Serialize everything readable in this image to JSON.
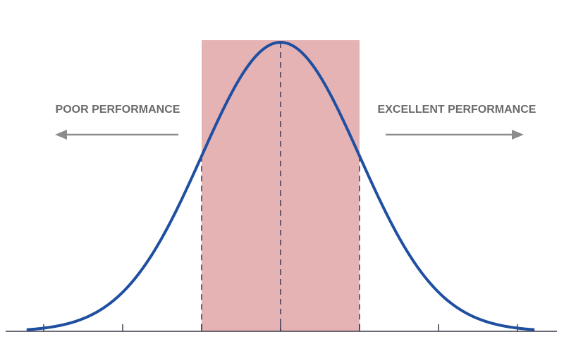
{
  "labels": {
    "left": "POOR PERFORMANCE",
    "right": "EXCELLENT PERFORMANCE"
  },
  "colors": {
    "curve": "#1f4fa0",
    "band": "#e6b3b5",
    "baseline": "#3a3a4a",
    "dash": "#3a3a5a",
    "arrow": "#8c8c8c",
    "text": "#6b6b6b"
  },
  "chart_data": {
    "type": "area",
    "distribution": "normal",
    "mean": 0,
    "sd": 1,
    "xlim": [
      -3.2,
      3.2
    ],
    "axis_ticks": [
      -3,
      -2,
      -1,
      0,
      1,
      2,
      3
    ],
    "dashed_markers": [
      -1,
      0,
      1
    ],
    "highlight_band": [
      -1,
      1
    ],
    "title": "",
    "xlabel": "",
    "ylabel": ""
  }
}
